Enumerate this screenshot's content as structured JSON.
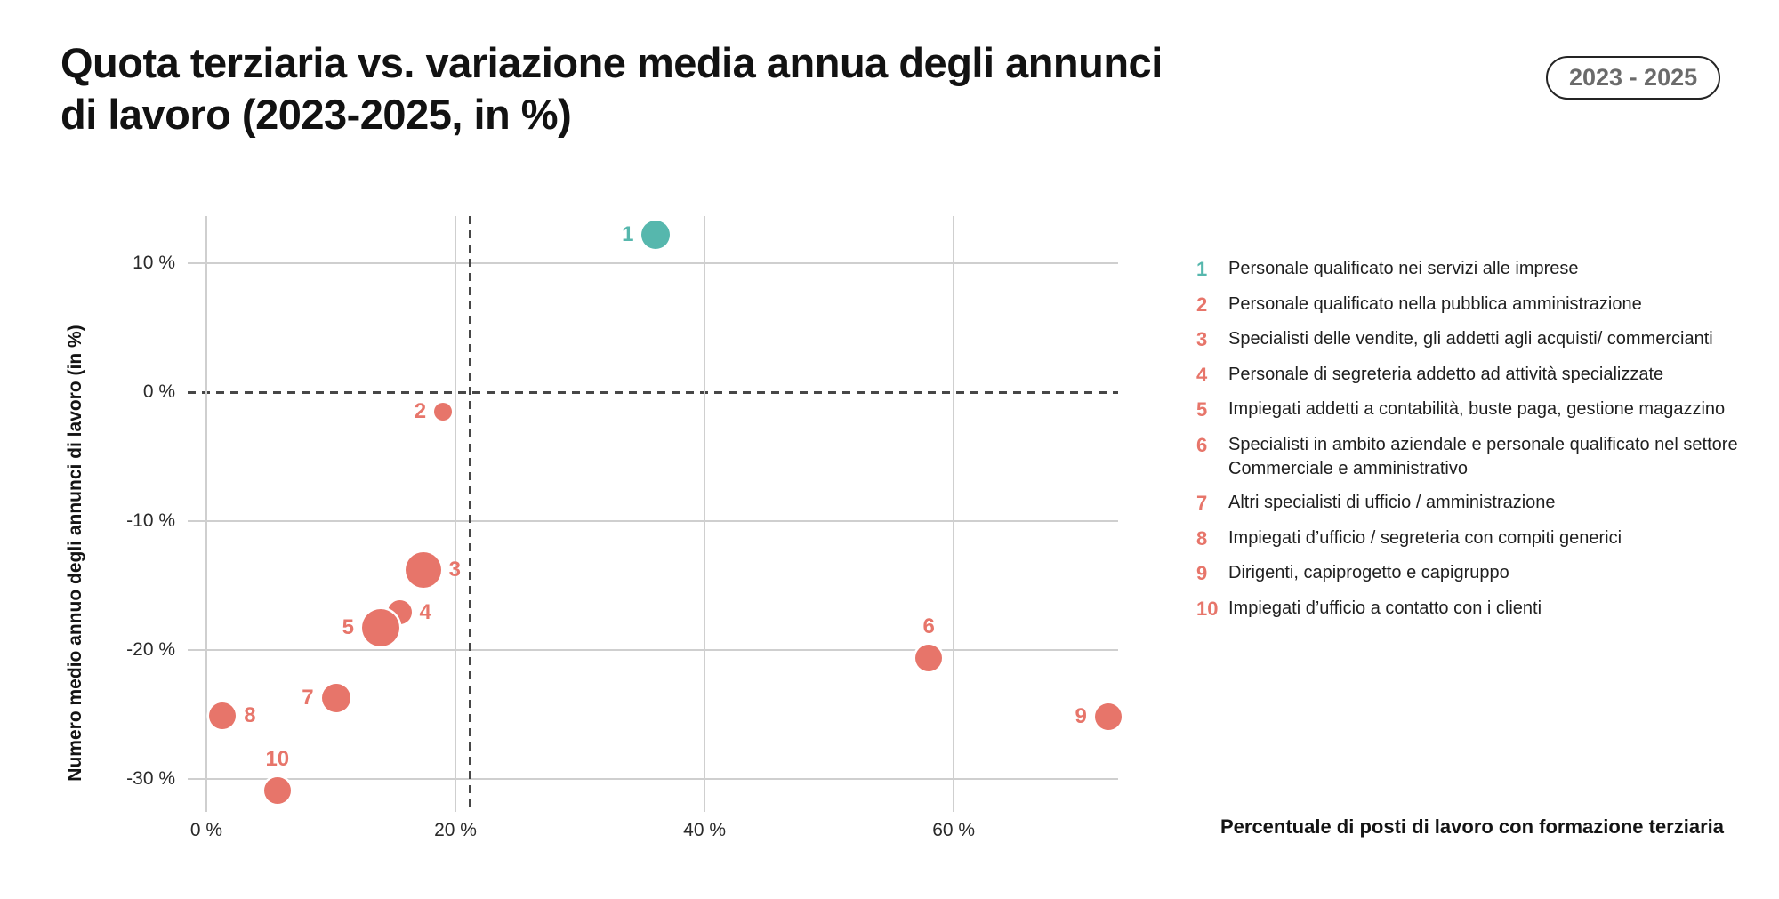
{
  "header": {
    "title_line1": "Quota terziaria vs. variazione media annua degli annunci",
    "title_line2": "di lavoro (2023-2025, in %)",
    "period_badge": "2023 - 2025"
  },
  "chart_data": {
    "type": "scatter",
    "title": "Quota terziaria vs. variazione media annua degli annunci di lavoro (2023-2025, in %)",
    "xlabel": "Percentuale di posti di lavoro con formazione terziaria",
    "ylabel": "Numero medio annuo degli annunci di lavoro (in %)",
    "x_range": [
      0,
      73.2
    ],
    "y_range": [
      -32.55,
      13.66
    ],
    "grid": true,
    "x_ticks": [
      {
        "value": 0,
        "label": "0 %"
      },
      {
        "value": 20,
        "label": "20 %"
      },
      {
        "value": 40,
        "label": "40 %"
      },
      {
        "value": 60,
        "label": "60 %"
      }
    ],
    "y_ticks": [
      {
        "value": 10,
        "label": "10 %",
        "dashed": false
      },
      {
        "value": 0,
        "label": "0 %",
        "dashed": true
      },
      {
        "value": -10,
        "label": "-10 %",
        "dashed": false
      },
      {
        "value": -20,
        "label": "-20 %",
        "dashed": false
      },
      {
        "value": -30,
        "label": "-30 %",
        "dashed": false
      }
    ],
    "reference_lines": {
      "horizontal_y": 0,
      "vertical_x": 21.2,
      "style": "dashed"
    },
    "colors": {
      "teal": "#56b7ad",
      "salmon": "#e7756a"
    },
    "points": [
      {
        "num": "1",
        "x": 36.1,
        "y": 12.2,
        "r": 16,
        "color": "teal",
        "label_pos": "left",
        "category": "Personale qualificato nei servizi alle imprese"
      },
      {
        "num": "2",
        "x": 19.0,
        "y": -1.5,
        "r": 10,
        "color": "salmon",
        "label_pos": "left",
        "category": "Personale qualificato nella pubblica amministrazione"
      },
      {
        "num": "3",
        "x": 17.4,
        "y": -13.8,
        "r": 20,
        "color": "salmon",
        "label_pos": "right",
        "category": "Specialisti delle vendite, gli addetti agli acquisti/ commercianti"
      },
      {
        "num": "4",
        "x": 15.5,
        "y": -17.1,
        "r": 13.5,
        "color": "salmon",
        "label_pos": "right",
        "category": "Personale di segreteria addetto ad attività specializzate"
      },
      {
        "num": "5",
        "x": 14.0,
        "y": -18.3,
        "r": 21,
        "color": "salmon",
        "label_pos": "left",
        "category": "Impiegati addetti a contabilità, buste paga, gestione magazzino"
      },
      {
        "num": "6",
        "x": 58.0,
        "y": -20.6,
        "r": 15,
        "color": "salmon",
        "label_pos": "above",
        "category": "Specialisti in ambito aziendale e personale qualificato nel settore Commerciale e amministrativo"
      },
      {
        "num": "7",
        "x": 10.4,
        "y": -23.7,
        "r": 16,
        "color": "salmon",
        "label_pos": "left",
        "category": "Altri specialisti di ufficio / amministrazione"
      },
      {
        "num": "8",
        "x": 1.3,
        "y": -25.1,
        "r": 15,
        "color": "salmon",
        "label_pos": "right",
        "category": "Impiegati d’ufficio / segreteria con compiti generici"
      },
      {
        "num": "9",
        "x": 72.4,
        "y": -25.2,
        "r": 15,
        "color": "salmon",
        "label_pos": "left",
        "category": "Dirigenti, capiprogetto e capigruppo"
      },
      {
        "num": "10",
        "x": 5.7,
        "y": -30.9,
        "r": 15,
        "color": "salmon",
        "label_pos": "above",
        "category": "Impiegati d’ufficio a contatto con i clienti"
      }
    ]
  },
  "legend": {
    "items": [
      {
        "num": "1",
        "color": "teal",
        "text": "Personale qualificato nei servizi alle imprese"
      },
      {
        "num": "2",
        "color": "salmon",
        "text": "Personale qualificato nella pubblica amministrazione"
      },
      {
        "num": "3",
        "color": "salmon",
        "text": "Specialisti delle vendite, gli addetti agli acquisti/ commercianti"
      },
      {
        "num": "4",
        "color": "salmon",
        "text": "Personale di segreteria addetto ad attività specializzate"
      },
      {
        "num": "5",
        "color": "salmon",
        "text": "Impiegati addetti a contabilità, buste paga, gestione magazzino"
      },
      {
        "num": "6",
        "color": "salmon",
        "text": "Specialisti in ambito aziendale e personale qualificato nel settore Commerciale e amministrativo"
      },
      {
        "num": "7",
        "color": "salmon",
        "text": "Altri specialisti di ufficio / amministrazione"
      },
      {
        "num": "8",
        "color": "salmon",
        "text": "Impiegati d’ufficio / segreteria con compiti generici"
      },
      {
        "num": "9",
        "color": "salmon",
        "text": "Dirigenti, capiprogetto e capigruppo"
      },
      {
        "num": "10",
        "color": "salmon",
        "text": "Impiegati d’ufficio a contatto con i clienti"
      }
    ]
  }
}
